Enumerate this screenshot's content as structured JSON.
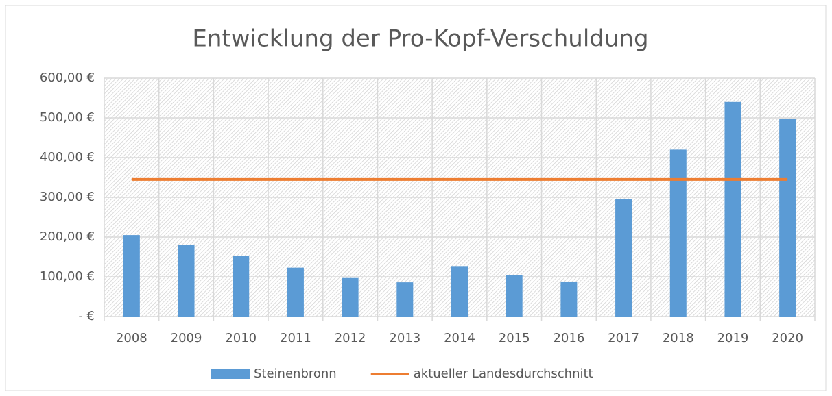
{
  "chart_data": {
    "type": "bar",
    "title": "Entwicklung der Pro-Kopf-Verschuldung",
    "categories": [
      "2008",
      "2009",
      "2010",
      "2011",
      "2012",
      "2013",
      "2014",
      "2015",
      "2016",
      "2017",
      "2018",
      "2019",
      "2020"
    ],
    "series": [
      {
        "name": "Steinenbronn",
        "type": "bar",
        "color": "#5b9bd5",
        "values": [
          205,
          180,
          152,
          123,
          97,
          86,
          127,
          105,
          88,
          296,
          420,
          540,
          497
        ]
      },
      {
        "name": "aktueller Landesdurchschnitt",
        "type": "line",
        "color": "#ed7d31",
        "values": [
          345,
          345,
          345,
          345,
          345,
          345,
          345,
          345,
          345,
          345,
          345,
          345,
          345
        ]
      }
    ],
    "ylim": [
      0,
      600
    ],
    "yticks": [
      {
        "value": 0,
        "label": "-   €"
      },
      {
        "value": 100,
        "label": "100,00 €"
      },
      {
        "value": 200,
        "label": "200,00 €"
      },
      {
        "value": 300,
        "label": "300,00 €"
      },
      {
        "value": 400,
        "label": "400,00 €"
      },
      {
        "value": 500,
        "label": "500,00 €"
      },
      {
        "value": 600,
        "label": "600,00 €"
      }
    ],
    "grid": true,
    "legend": "bottom"
  }
}
